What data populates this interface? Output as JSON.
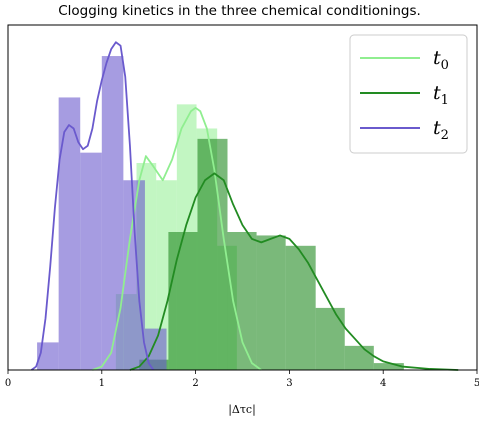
{
  "chart_data": {
    "type": "bar",
    "subtype": "histogram_with_kde",
    "title": "Clogging kinetics in the three chemical conditionings.",
    "xlabel": "|Δτc|",
    "ylabel": "",
    "xlim": [
      0,
      5
    ],
    "ylim": [
      0,
      1.0
    ],
    "x_ticks": [
      "0",
      "1",
      "2",
      "3",
      "4",
      "5"
    ],
    "x_tick_values": [
      0,
      1,
      2,
      3,
      4,
      5
    ],
    "grid": false,
    "legend_position": "top-right",
    "series": [
      {
        "name": "t0",
        "legend_label": "t",
        "legend_sub": "0",
        "color": "#90ee90",
        "hist_alpha": 0.55,
        "bins": [
          {
            "x0": 1.15,
            "x1": 1.37,
            "height": 0.22
          },
          {
            "x0": 1.37,
            "x1": 1.58,
            "height": 0.6
          },
          {
            "x0": 1.58,
            "x1": 1.8,
            "height": 0.55
          },
          {
            "x0": 1.8,
            "x1": 2.01,
            "height": 0.77
          },
          {
            "x0": 2.01,
            "x1": 2.23,
            "height": 0.7
          },
          {
            "x0": 2.23,
            "x1": 2.44,
            "height": 0.36
          }
        ],
        "kde": [
          [
            0.9,
            0.0
          ],
          [
            1.0,
            0.01
          ],
          [
            1.1,
            0.05
          ],
          [
            1.2,
            0.18
          ],
          [
            1.3,
            0.38
          ],
          [
            1.4,
            0.55
          ],
          [
            1.47,
            0.62
          ],
          [
            1.55,
            0.59
          ],
          [
            1.65,
            0.55
          ],
          [
            1.75,
            0.61
          ],
          [
            1.85,
            0.7
          ],
          [
            1.95,
            0.75
          ],
          [
            2.0,
            0.76
          ],
          [
            2.05,
            0.75
          ],
          [
            2.12,
            0.7
          ],
          [
            2.2,
            0.58
          ],
          [
            2.3,
            0.38
          ],
          [
            2.4,
            0.2
          ],
          [
            2.5,
            0.08
          ],
          [
            2.6,
            0.02
          ],
          [
            2.7,
            0.0
          ]
        ]
      },
      {
        "name": "t1",
        "legend_label": "t",
        "legend_sub": "1",
        "color": "#228b22",
        "hist_alpha": 0.6,
        "bins": [
          {
            "x0": 1.4,
            "x1": 1.71,
            "height": 0.03
          },
          {
            "x0": 1.71,
            "x1": 2.02,
            "height": 0.4
          },
          {
            "x0": 2.02,
            "x1": 2.34,
            "height": 0.67
          },
          {
            "x0": 2.34,
            "x1": 2.65,
            "height": 0.4
          },
          {
            "x0": 2.65,
            "x1": 2.96,
            "height": 0.39
          },
          {
            "x0": 2.96,
            "x1": 3.28,
            "height": 0.36
          },
          {
            "x0": 3.28,
            "x1": 3.59,
            "height": 0.18
          },
          {
            "x0": 3.59,
            "x1": 3.9,
            "height": 0.07
          },
          {
            "x0": 3.9,
            "x1": 4.22,
            "height": 0.02
          }
        ],
        "kde": [
          [
            1.3,
            0.0
          ],
          [
            1.4,
            0.01
          ],
          [
            1.5,
            0.04
          ],
          [
            1.6,
            0.1
          ],
          [
            1.7,
            0.2
          ],
          [
            1.8,
            0.32
          ],
          [
            1.9,
            0.42
          ],
          [
            2.0,
            0.5
          ],
          [
            2.1,
            0.55
          ],
          [
            2.2,
            0.57
          ],
          [
            2.3,
            0.55
          ],
          [
            2.4,
            0.48
          ],
          [
            2.5,
            0.42
          ],
          [
            2.6,
            0.38
          ],
          [
            2.7,
            0.37
          ],
          [
            2.8,
            0.38
          ],
          [
            2.9,
            0.39
          ],
          [
            3.0,
            0.38
          ],
          [
            3.1,
            0.35
          ],
          [
            3.2,
            0.31
          ],
          [
            3.3,
            0.26
          ],
          [
            3.4,
            0.21
          ],
          [
            3.5,
            0.16
          ],
          [
            3.6,
            0.12
          ],
          [
            3.7,
            0.09
          ],
          [
            3.8,
            0.06
          ],
          [
            3.9,
            0.04
          ],
          [
            4.0,
            0.025
          ],
          [
            4.2,
            0.01
          ],
          [
            4.5,
            0.003
          ],
          [
            4.8,
            0.0
          ]
        ]
      },
      {
        "name": "t2",
        "legend_label": "t",
        "legend_sub": "2",
        "color": "#6a5acd",
        "hist_alpha": 0.6,
        "bins": [
          {
            "x0": 0.31,
            "x1": 0.54,
            "height": 0.08
          },
          {
            "x0": 0.54,
            "x1": 0.77,
            "height": 0.79
          },
          {
            "x0": 0.77,
            "x1": 1.0,
            "height": 0.63
          },
          {
            "x0": 1.0,
            "x1": 1.23,
            "height": 0.91
          },
          {
            "x0": 1.23,
            "x1": 1.46,
            "height": 0.55
          },
          {
            "x0": 1.46,
            "x1": 1.69,
            "height": 0.12
          }
        ],
        "kde": [
          [
            0.25,
            0.0
          ],
          [
            0.3,
            0.01
          ],
          [
            0.35,
            0.05
          ],
          [
            0.4,
            0.15
          ],
          [
            0.45,
            0.3
          ],
          [
            0.5,
            0.47
          ],
          [
            0.55,
            0.61
          ],
          [
            0.6,
            0.69
          ],
          [
            0.65,
            0.71
          ],
          [
            0.7,
            0.7
          ],
          [
            0.75,
            0.66
          ],
          [
            0.8,
            0.64
          ],
          [
            0.85,
            0.65
          ],
          [
            0.9,
            0.7
          ],
          [
            0.95,
            0.78
          ],
          [
            1.0,
            0.84
          ],
          [
            1.05,
            0.89
          ],
          [
            1.1,
            0.93
          ],
          [
            1.15,
            0.95
          ],
          [
            1.2,
            0.94
          ],
          [
            1.25,
            0.85
          ],
          [
            1.3,
            0.65
          ],
          [
            1.35,
            0.4
          ],
          [
            1.4,
            0.2
          ],
          [
            1.45,
            0.08
          ],
          [
            1.5,
            0.02
          ],
          [
            1.55,
            0.0
          ]
        ]
      }
    ]
  }
}
